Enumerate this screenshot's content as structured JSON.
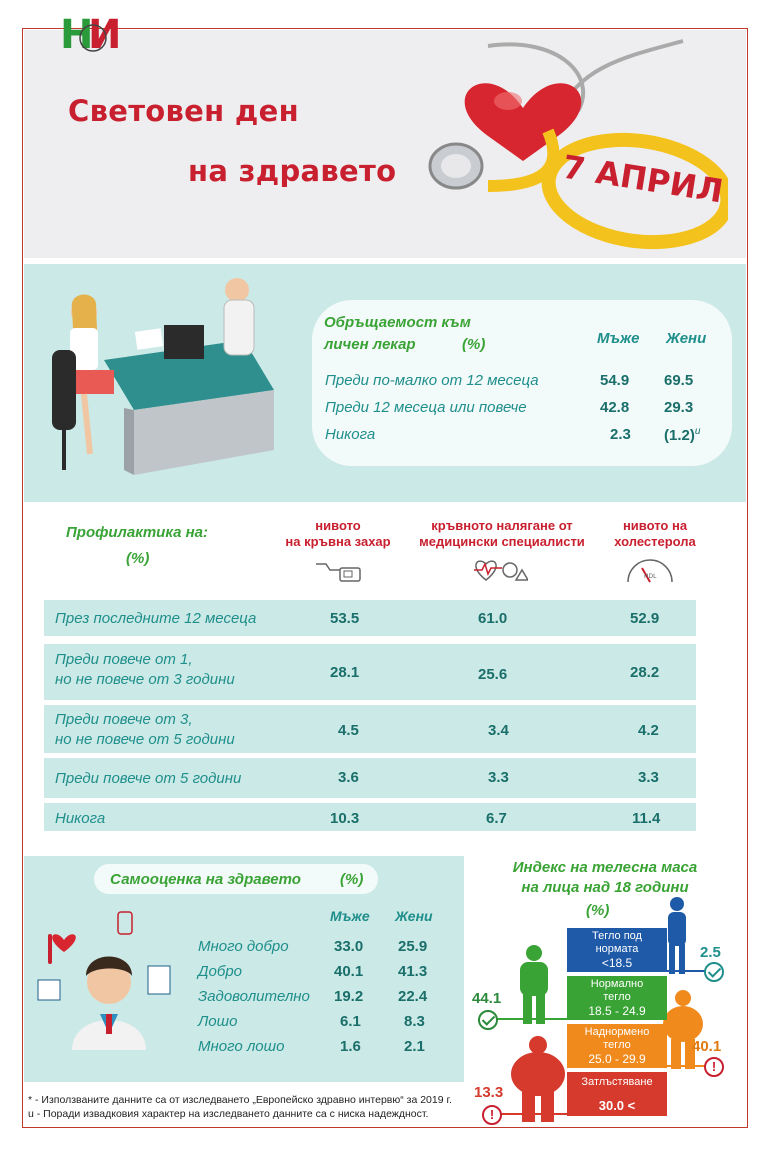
{
  "header": {
    "logo": "НИ",
    "title_line1": "Световен ден",
    "title_line2": "на здравето",
    "date": "7 АПРИЛ"
  },
  "gp": {
    "title_line1": "Обръщаемост към",
    "title_line2": "личен лекар",
    "unit": "(%)",
    "col_men": "Мъже",
    "col_women": "Жени",
    "rows": [
      {
        "label": "Преди по-малко от 12 месеца",
        "men": "54.9",
        "women": "69.5"
      },
      {
        "label": "Преди 12 месеца или повече",
        "men": "42.8",
        "women": "29.3"
      },
      {
        "label": "Никога",
        "men": "2.3",
        "women": "(1.2)",
        "women_note": "u"
      }
    ]
  },
  "prevention": {
    "title": "Профилактика на:",
    "unit": "(%)",
    "columns": [
      {
        "line1": "нивото",
        "line2": "на кръвна захар"
      },
      {
        "line1": "кръвното налягане от",
        "line2": "медицински специалисти"
      },
      {
        "line1": "нивото на",
        "line2": "холестерола"
      }
    ],
    "rows": [
      {
        "line1": "През последните 12 месеца",
        "line2": "",
        "values": [
          "53.5",
          "61.0",
          "52.9"
        ]
      },
      {
        "line1": "Преди повече от 1,",
        "line2": "но не повече от 3 години",
        "values": [
          "28.1",
          "25.6",
          "28.2"
        ]
      },
      {
        "line1": "Преди повече от 3,",
        "line2": "но не повече от 5 години",
        "values": [
          "4.5",
          "3.4",
          "4.2"
        ]
      },
      {
        "line1": "Преди повече от 5 години",
        "line2": "",
        "values": [
          "3.6",
          "3.3",
          "3.3"
        ]
      },
      {
        "line1": "Никога",
        "line2": "",
        "values": [
          "10.3",
          "6.7",
          "11.4"
        ]
      }
    ]
  },
  "self_assessment": {
    "title": "Самооценка на здравето",
    "unit": "(%)",
    "col_men": "Мъже",
    "col_women": "Жени",
    "rows": [
      {
        "label": "Много добро",
        "men": "33.0",
        "women": "25.9"
      },
      {
        "label": "Добро",
        "men": "40.1",
        "women": "41.3"
      },
      {
        "label": "Задоволително",
        "men": "19.2",
        "women": "22.4"
      },
      {
        "label": "Лошо",
        "men": "6.1",
        "women": "8.3"
      },
      {
        "label": "Много лошо",
        "men": "1.6",
        "women": "2.1"
      }
    ]
  },
  "bmi": {
    "title_line1": "Индекс на телесна маса",
    "title_line2": "на лица над 18 години",
    "unit": "(%)",
    "categories": [
      {
        "name_line1": "Тегло под",
        "name_line2": "нормата",
        "range": "<18.5",
        "value": "2.5",
        "color": "#1e5aa8"
      },
      {
        "name_line1": "Нормално",
        "name_line2": "тегло",
        "range": "18.5 - 24.9",
        "value": "44.1",
        "color": "#3aa335"
      },
      {
        "name_line1": "Наднормено",
        "name_line2": "тегло",
        "range": "25.0 - 29.9",
        "value": "40.1",
        "color": "#f08a1c"
      },
      {
        "name_line1": "Затлъстяване",
        "name_line2": "",
        "range": "30.0 <",
        "value": "13.3",
        "color": "#d63a2c"
      }
    ]
  },
  "footnotes": {
    "note1": "* - Използваните данните са  от изследването „Европейско здравно интервю“ за 2019 г.",
    "note2": "u - Поради извадковия характер на изследването данните са с ниска надеждност."
  }
}
